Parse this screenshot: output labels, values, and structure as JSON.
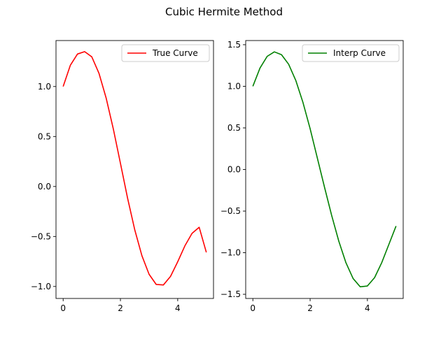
{
  "figure": {
    "suptitle": "Cubic Hermite Method"
  },
  "chart_data": [
    {
      "type": "line",
      "title": "",
      "xlabel": "",
      "ylabel": "",
      "xlim": [
        -0.25,
        5.25
      ],
      "ylim": [
        -1.12,
        1.46
      ],
      "xticks": [
        0,
        2,
        4
      ],
      "xtick_labels": [
        "0",
        "2",
        "4"
      ],
      "yticks": [
        -1.0,
        -0.5,
        0.0,
        0.5,
        1.0
      ],
      "ytick_labels": [
        "−1.0",
        "−0.5",
        "0.0",
        "0.5",
        "1.0"
      ],
      "grid": false,
      "legend_position": "top-right",
      "series": [
        {
          "name": "True Curve",
          "color": "#ff0000",
          "x": [
            0,
            0.25,
            0.5,
            0.75,
            1.0,
            1.25,
            1.5,
            1.75,
            2.0,
            2.25,
            2.5,
            2.75,
            3.0,
            3.25,
            3.5,
            3.75,
            4.0,
            4.25,
            4.5,
            4.75,
            5.0
          ],
          "y": [
            1.0,
            1.212,
            1.325,
            1.349,
            1.297,
            1.133,
            0.886,
            0.578,
            0.232,
            -0.117,
            -0.433,
            -0.692,
            -0.878,
            -0.98,
            -0.985,
            -0.899,
            -0.753,
            -0.594,
            -0.469,
            -0.408,
            -0.659
          ]
        }
      ]
    },
    {
      "type": "line",
      "title": "",
      "xlabel": "",
      "ylabel": "",
      "xlim": [
        -0.25,
        5.25
      ],
      "ylim": [
        -1.55,
        1.55
      ],
      "xticks": [
        0,
        2,
        4
      ],
      "xtick_labels": [
        "0",
        "2",
        "4"
      ],
      "yticks": [
        -1.5,
        -1.0,
        -0.5,
        0.0,
        0.5,
        1.0,
        1.5
      ],
      "ytick_labels": [
        "−1.5",
        "−1.0",
        "−0.5",
        "0.0",
        "0.5",
        "1.0",
        "1.5"
      ],
      "grid": false,
      "legend_position": "top-right",
      "series": [
        {
          "name": "Interp Curve",
          "color": "#008000",
          "x": [
            0,
            0.25,
            0.5,
            0.75,
            1.0,
            1.25,
            1.5,
            1.75,
            2.0,
            2.25,
            2.5,
            2.75,
            3.0,
            3.25,
            3.5,
            3.75,
            4.0,
            4.25,
            4.5,
            4.75,
            5.0
          ],
          "y": [
            1.0,
            1.22,
            1.36,
            1.414,
            1.38,
            1.265,
            1.07,
            0.805,
            0.49,
            0.14,
            -0.21,
            -0.55,
            -0.86,
            -1.12,
            -1.31,
            -1.41,
            -1.4,
            -1.3,
            -1.12,
            -0.9,
            -0.68
          ]
        }
      ]
    }
  ]
}
